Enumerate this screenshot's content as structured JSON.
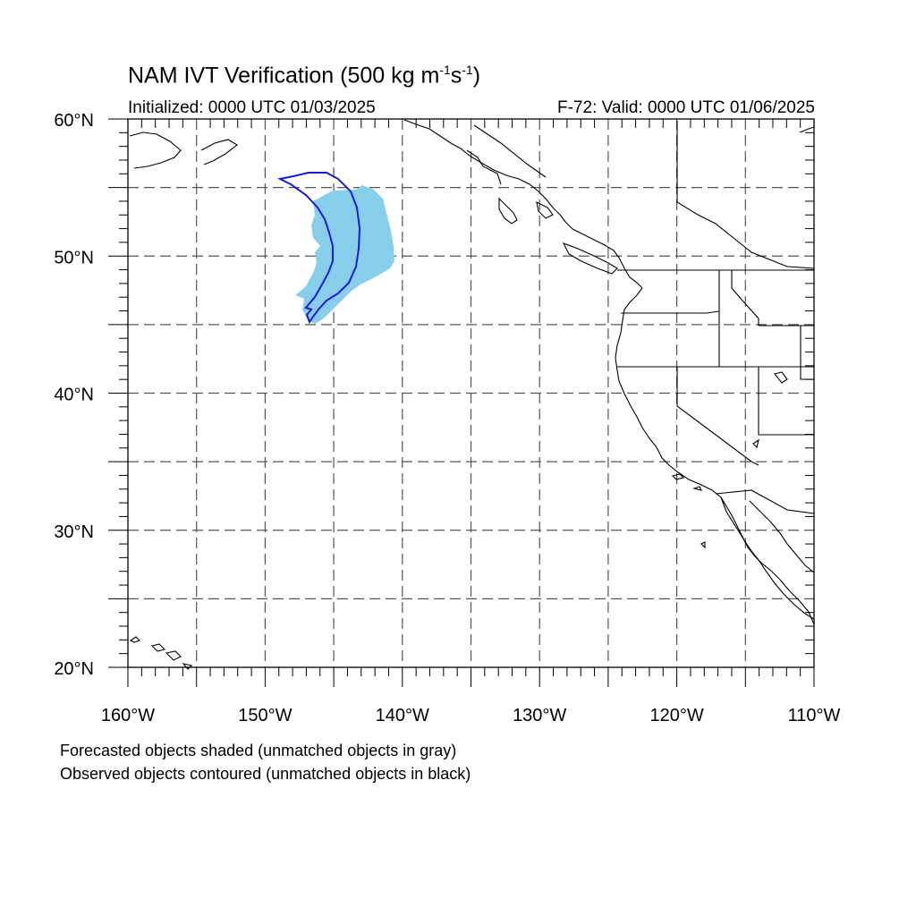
{
  "title": {
    "main": "NAM IVT Verification (500 kg m",
    "sup1": "-1",
    "mid": "s",
    "sup2": "-1",
    "end": ")"
  },
  "initialized": "Initialized: 0000 UTC 01/03/2025",
  "valid": "F-72: Valid: 0000 UTC 01/06/2025",
  "axes": {
    "lat_labels": [
      "60°N",
      "50°N",
      "40°N",
      "30°N",
      "20°N"
    ],
    "lon_labels": [
      "160°W",
      "150°W",
      "140°W",
      "130°W",
      "120°W",
      "110°W"
    ],
    "lat_range": [
      20,
      60
    ],
    "lon_range": [
      -160,
      -110
    ]
  },
  "notes": [
    "Forecasted objects shaded (unmatched objects in gray)",
    "Observed objects contoured (unmatched objects in black)"
  ],
  "colors": {
    "forecast_fill": "#87ceeb",
    "observed_contour": "#1a1adc",
    "coastline": "#000000",
    "grid": "#555555"
  }
}
